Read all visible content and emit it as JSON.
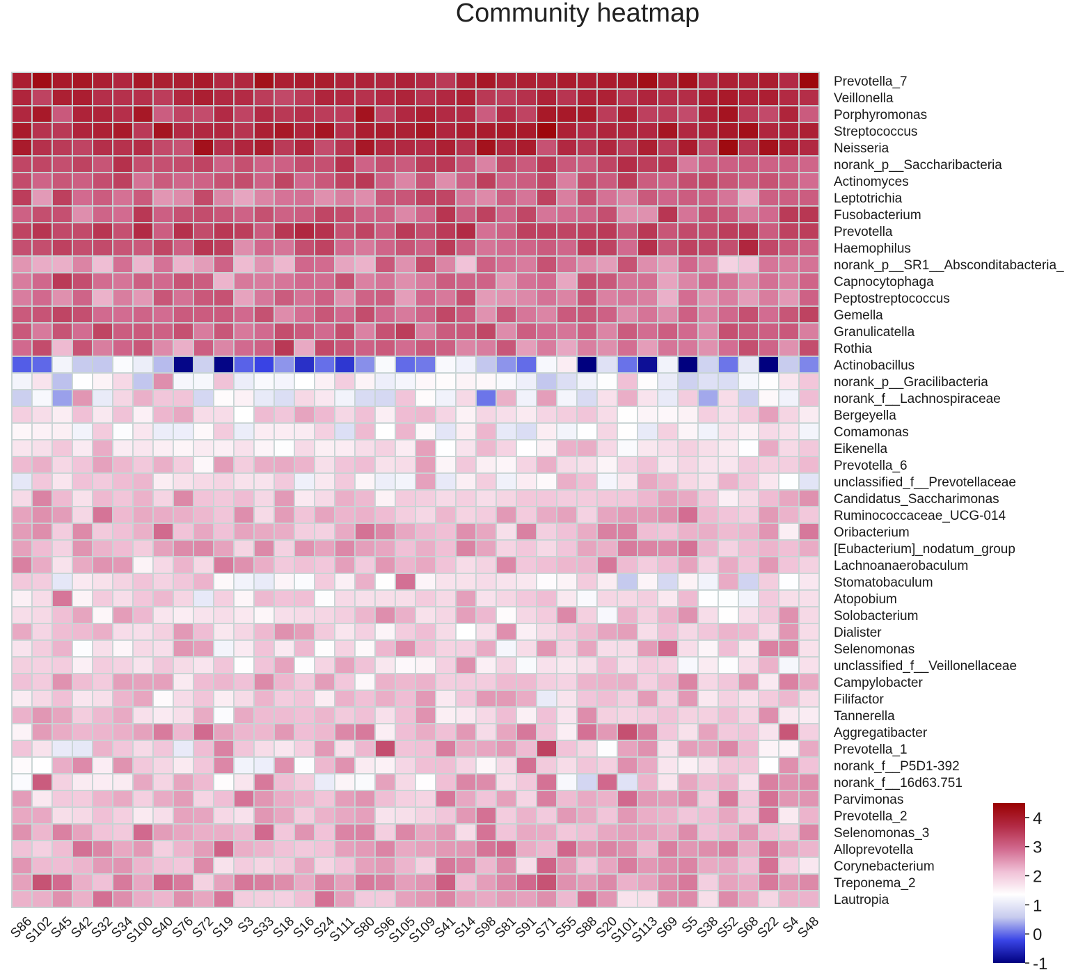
{
  "chart_data": {
    "type": "heatmap",
    "title": "Community heatmap",
    "columns": [
      "S86",
      "S102",
      "S45",
      "S42",
      "S32",
      "S34",
      "S100",
      "S40",
      "S76",
      "S72",
      "S19",
      "S3",
      "S33",
      "S18",
      "S16",
      "S24",
      "S111",
      "S80",
      "S96",
      "S105",
      "S109",
      "S41",
      "S14",
      "S98",
      "S81",
      "S91",
      "S71",
      "S55",
      "S88",
      "S20",
      "S101",
      "S113",
      "S69",
      "S5",
      "S38",
      "S52",
      "S68",
      "S22",
      "S4",
      "S48"
    ],
    "rows": [
      "Prevotella_7",
      "Veillonella",
      "Porphyromonas",
      "Streptococcus",
      "Neisseria",
      "norank_p__Saccharibacteria",
      "Actinomyces",
      "Leptotrichia",
      "Fusobacterium",
      "Prevotella",
      "Haemophilus",
      "norank_p__SR1__Absconditabacteria_",
      "Capnocytophaga",
      "Peptostreptococcus",
      "Gemella",
      "Granulicatella",
      "Rothia",
      "Actinobacillus",
      "norank_p__Gracilibacteria",
      "norank_f__Lachnospiraceae",
      "Bergeyella",
      "Comamonas",
      "Eikenella",
      "Prevotella_6",
      "unclassified_f__Prevotellaceae",
      "Candidatus_Saccharimonas",
      "Ruminococcaceae_UCG-014",
      "Oribacterium",
      "[Eubacterium]_nodatum_group",
      "Lachnoanaerobaculum",
      "Stomatobaculum",
      "Atopobium",
      "Solobacterium",
      "Dialister",
      "Selenomonas",
      "unclassified_f__Veillonellaceae",
      "Campylobacter",
      "Filifactor",
      "Tannerella",
      "Aggregatibacter",
      "Prevotella_1",
      "norank_f__P5D1-392",
      "norank_f__16d63.751",
      "Parvimonas",
      "Prevotella_2",
      "Selenomonas_3",
      "Alloprevotella",
      "Corynebacterium",
      "Treponema_2",
      "Lautropia"
    ],
    "colorbar": {
      "min": -1,
      "max": 4.5,
      "ticks": [
        "4",
        "3",
        "2",
        "1",
        "0",
        "-1"
      ],
      "tick_values": [
        4,
        3,
        2,
        1,
        0,
        -1
      ],
      "colors": [
        "#00007f",
        "#3a45e6",
        "#c7cbee",
        "#ffffff",
        "#f0c0d6",
        "#d1698e",
        "#b22a44",
        "#990000"
      ]
    },
    "row_profiles": [
      [
        3.9,
        0.25
      ],
      [
        3.7,
        0.25
      ],
      [
        3.6,
        0.3
      ],
      [
        3.9,
        0.2
      ],
      [
        3.7,
        0.3
      ],
      [
        3.2,
        0.25
      ],
      [
        3.2,
        0.25
      ],
      [
        2.9,
        0.3
      ],
      [
        3.1,
        0.35
      ],
      [
        3.4,
        0.25
      ],
      [
        3.2,
        0.3
      ],
      [
        2.6,
        0.45
      ],
      [
        2.9,
        0.3
      ],
      [
        2.8,
        0.3
      ],
      [
        3.0,
        0.25
      ],
      [
        3.0,
        0.25
      ],
      [
        2.9,
        0.35
      ],
      [
        0.2,
        0.8
      ],
      [
        1.3,
        0.6
      ],
      [
        1.3,
        0.8
      ],
      [
        1.8,
        0.35
      ],
      [
        1.4,
        0.45
      ],
      [
        1.7,
        0.35
      ],
      [
        2.0,
        0.4
      ],
      [
        1.7,
        0.5
      ],
      [
        2.1,
        0.35
      ],
      [
        2.3,
        0.35
      ],
      [
        2.3,
        0.35
      ],
      [
        2.3,
        0.3
      ],
      [
        2.2,
        0.35
      ],
      [
        1.6,
        0.6
      ],
      [
        1.9,
        0.45
      ],
      [
        2.0,
        0.35
      ],
      [
        2.0,
        0.35
      ],
      [
        2.0,
        0.45
      ],
      [
        1.9,
        0.4
      ],
      [
        2.2,
        0.35
      ],
      [
        2.0,
        0.45
      ],
      [
        2.0,
        0.4
      ],
      [
        2.3,
        0.45
      ],
      [
        2.0,
        0.8
      ],
      [
        2.0,
        0.6
      ],
      [
        2.0,
        0.6
      ],
      [
        2.3,
        0.4
      ],
      [
        2.2,
        0.35
      ],
      [
        2.4,
        0.35
      ],
      [
        2.5,
        0.35
      ],
      [
        2.3,
        0.35
      ],
      [
        2.5,
        0.35
      ],
      [
        2.4,
        0.35
      ]
    ],
    "grid": true,
    "legend": "colorbar bottom-right"
  }
}
